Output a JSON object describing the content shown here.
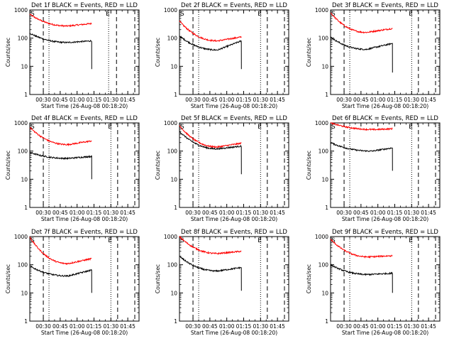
{
  "chart_data": [
    {
      "type": "line",
      "title": "Det 1f BLACK = Events, RED = LLD",
      "xlabel": "Start Time (26-Aug-08 00:18:20)",
      "ylabel": "Counts/sec",
      "ylim": [
        1,
        1000
      ],
      "yscale": "log",
      "xlim_minutes": [
        0,
        97
      ],
      "x_ticks": [
        "00:30",
        "00:45",
        "01:00",
        "01:15",
        "01:30",
        "01:45"
      ],
      "y_ticks": [
        "1",
        "10",
        "100",
        "1000"
      ],
      "markers": {
        "S_label": "S",
        "E_label": "E",
        "S_dashed": "00:30",
        "E_dotted": "01:28",
        "E_dashed": "01:35"
      },
      "series": [
        {
          "color": "#ff0000",
          "start": 700,
          "trough": 270,
          "end": 330,
          "trough_time": "00:52"
        },
        {
          "color": "#000000",
          "start": 150,
          "trough": 70,
          "end": 80,
          "trough_time": "00:52",
          "cutoff": "01:13",
          "cutoff_value": 8
        }
      ]
    },
    {
      "type": "line",
      "title": "Det 2f BLACK = Events, RED = LLD",
      "xlabel": "Start Time (26-Aug-08 00:18:20)",
      "ylabel": "Counts/sec",
      "ylim": [
        1,
        1000
      ],
      "yscale": "log",
      "xlim_minutes": [
        0,
        97
      ],
      "x_ticks": [
        "00:30",
        "00:45",
        "01:00",
        "01:15",
        "01:30",
        "01:45"
      ],
      "y_ticks": [
        "1",
        "10",
        "100",
        "1000"
      ],
      "markers": {
        "S_label": "S",
        "E_label": "E",
        "S_dashed": "00:30",
        "E_dotted": "01:30",
        "E_dashed": "01:36"
      },
      "series": [
        {
          "color": "#ff0000",
          "start": 400,
          "trough": 80,
          "end": 110,
          "trough_time": "00:52"
        },
        {
          "color": "#000000",
          "start": 120,
          "trough": 38,
          "end": 80,
          "trough_time": "00:52",
          "cutoff": "01:13",
          "cutoff_value": 8
        }
      ]
    },
    {
      "type": "line",
      "title": "Det 3f BLACK = Events, RED = LLD",
      "xlabel": "Start Time (26-Aug-08 00:18:20)",
      "ylabel": "Counts/sec",
      "ylim": [
        1,
        1000
      ],
      "yscale": "log",
      "xlim_minutes": [
        0,
        97
      ],
      "x_ticks": [
        "00:30",
        "00:45",
        "01:00",
        "01:15",
        "01:30",
        "01:45"
      ],
      "y_ticks": [
        "1",
        "10",
        "100",
        "1000"
      ],
      "markers": {
        "S_label": "S",
        "E_label": "E",
        "S_dashed": "00:30",
        "E_dotted": "01:30",
        "E_dashed": "01:36"
      },
      "series": [
        {
          "color": "#ff0000",
          "start": 800,
          "trough": 160,
          "end": 220,
          "trough_time": "00:50"
        },
        {
          "color": "#000000",
          "start": 110,
          "trough": 40,
          "end": 65,
          "trough_time": "00:50",
          "cutoff": "01:13",
          "cutoff_value": 6
        }
      ]
    },
    {
      "type": "line",
      "title": "Det 4f BLACK = Events, RED = LLD",
      "xlabel": "Start Time (26-Aug-08 00:18:20)",
      "ylabel": "Counts/sec",
      "ylim": [
        1,
        1000
      ],
      "yscale": "log",
      "xlim_minutes": [
        0,
        97
      ],
      "x_ticks": [
        "00:30",
        "00:45",
        "01:00",
        "01:15",
        "01:30",
        "01:45"
      ],
      "y_ticks": [
        "1",
        "10",
        "100",
        "1000"
      ],
      "markers": {
        "S_label": "S",
        "E_label": "E",
        "S_dashed": "00:30",
        "E_dotted": "01:30",
        "E_dashed": "01:36"
      },
      "series": [
        {
          "color": "#ff0000",
          "start": 700,
          "trough": 170,
          "end": 230,
          "trough_time": "00:52"
        },
        {
          "color": "#000000",
          "start": 90,
          "trough": 55,
          "end": 65,
          "trough_time": "00:52",
          "cutoff": "01:13",
          "cutoff_value": 10
        }
      ]
    },
    {
      "type": "line",
      "title": "Det 5f BLACK = Events, RED = LLD",
      "xlabel": "Start Time (26-Aug-08 00:18:20)",
      "ylabel": "Counts/sec",
      "ylim": [
        1,
        1000
      ],
      "yscale": "log",
      "xlim_minutes": [
        0,
        97
      ],
      "x_ticks": [
        "00:30",
        "00:45",
        "01:00",
        "01:15",
        "01:30",
        "01:45"
      ],
      "y_ticks": [
        "1",
        "10",
        "100",
        "1000"
      ],
      "markers": {
        "S_label": "S",
        "E_label": "E",
        "S_dashed": "00:30",
        "E_dotted": "01:30",
        "E_dashed": "01:36"
      },
      "series": [
        {
          "color": "#ff0000",
          "start": 800,
          "trough": 140,
          "end": 190,
          "trough_time": "00:52"
        },
        {
          "color": "#000000",
          "start": 500,
          "trough": 120,
          "end": 150,
          "trough_time": "00:52",
          "cutoff": "01:13",
          "cutoff_value": 15
        }
      ]
    },
    {
      "type": "line",
      "title": "Det 6f BLACK = Events, RED = LLD",
      "xlabel": "Start Time (26-Aug-08 00:18:20)",
      "ylabel": "Counts/sec",
      "ylim": [
        1,
        1000
      ],
      "yscale": "log",
      "xlim_minutes": [
        0,
        97
      ],
      "x_ticks": [
        "00:30",
        "00:45",
        "01:00",
        "01:15",
        "01:30",
        "01:45"
      ],
      "y_ticks": [
        "1",
        "10",
        "100",
        "1000"
      ],
      "markers": {
        "S_label": "S",
        "E_label": "E",
        "S_dashed": "00:30",
        "E_dotted": "01:30",
        "E_dashed": "01:36"
      },
      "series": [
        {
          "color": "#ff0000",
          "start": 1000,
          "trough": 580,
          "end": 620,
          "trough_time": "00:58"
        },
        {
          "color": "#000000",
          "start": 200,
          "trough": 100,
          "end": 130,
          "trough_time": "00:55",
          "cutoff": "01:13",
          "cutoff_value": 20
        }
      ]
    },
    {
      "type": "line",
      "title": "Det 7f BLACK = Events, RED = LLD",
      "xlabel": "Start Time (26-Aug-08 00:18:20)",
      "ylabel": "Counts/sec",
      "ylim": [
        1,
        1000
      ],
      "yscale": "log",
      "xlim_minutes": [
        0,
        97
      ],
      "x_ticks": [
        "00:30",
        "00:45",
        "01:00",
        "01:15",
        "01:30",
        "01:45"
      ],
      "y_ticks": [
        "1",
        "10",
        "100",
        "1000"
      ],
      "markers": {
        "S_label": "S",
        "E_label": "E",
        "S_dashed": "00:30",
        "E_dotted": "01:30",
        "E_dashed": "01:36"
      },
      "series": [
        {
          "color": "#ff0000",
          "start": 950,
          "trough": 110,
          "end": 165,
          "trough_time": "00:52"
        },
        {
          "color": "#000000",
          "start": 90,
          "trough": 40,
          "end": 65,
          "trough_time": "00:52",
          "cutoff": "01:13",
          "cutoff_value": 10
        }
      ]
    },
    {
      "type": "line",
      "title": "Det 8f BLACK = Events, RED = LLD",
      "xlabel": "Start Time (26-Aug-08 00:18:20)",
      "ylabel": "Counts/sec",
      "ylim": [
        1,
        1000
      ],
      "yscale": "log",
      "xlim_minutes": [
        0,
        97
      ],
      "x_ticks": [
        "00:30",
        "00:45",
        "01:00",
        "01:15",
        "01:30",
        "01:45"
      ],
      "y_ticks": [
        "1",
        "10",
        "100",
        "1000"
      ],
      "markers": {
        "S_label": "S",
        "E_label": "E",
        "S_dashed": "00:30",
        "E_dotted": "01:30",
        "E_dashed": "01:36"
      },
      "series": [
        {
          "color": "#ff0000",
          "start": 1000,
          "trough": 250,
          "end": 300,
          "trough_time": "00:52"
        },
        {
          "color": "#000000",
          "start": 200,
          "trough": 60,
          "end": 80,
          "trough_time": "00:52",
          "cutoff": "01:13",
          "cutoff_value": 12
        }
      ]
    },
    {
      "type": "line",
      "title": "Det 9f BLACK = Events, RED = LLD",
      "xlabel": "Start Time (26-Aug-08 00:18:20)",
      "ylabel": "Counts/sec",
      "ylim": [
        1,
        1000
      ],
      "yscale": "log",
      "xlim_minutes": [
        0,
        97
      ],
      "x_ticks": [
        "00:30",
        "00:45",
        "01:00",
        "01:15",
        "01:30",
        "01:45"
      ],
      "y_ticks": [
        "1",
        "10",
        "100",
        "1000"
      ],
      "markers": {
        "S_label": "S",
        "E_label": "E",
        "S_dashed": "00:30",
        "E_dotted": "01:30",
        "E_dashed": "01:36"
      },
      "series": [
        {
          "color": "#ff0000",
          "start": 800,
          "trough": 190,
          "end": 210,
          "trough_time": "00:52"
        },
        {
          "color": "#000000",
          "start": 100,
          "trough": 45,
          "end": 50,
          "trough_time": "00:52",
          "cutoff": "01:13",
          "cutoff_value": 10
        }
      ]
    }
  ]
}
